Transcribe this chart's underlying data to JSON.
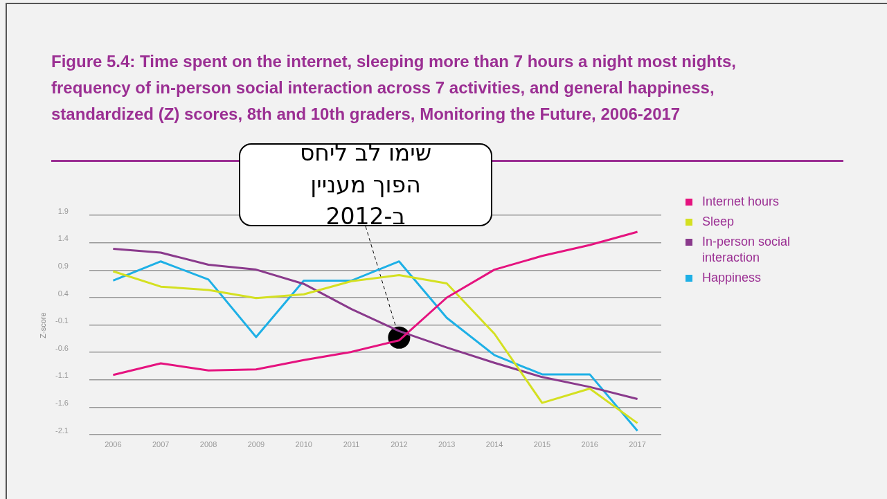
{
  "chart_data": {
    "type": "line",
    "title": "Figure 5.4: Time spent on the internet, sleeping more than 7 hours a night most nights, frequency of in-person social interaction across 7 activities, and general happiness, standardized (Z) scores, 8th and 10th graders, Monitoring the Future, 2006-2017",
    "ylabel": "Z-score",
    "categories": [
      "2006",
      "2007",
      "2008",
      "2009",
      "2010",
      "2011",
      "2012",
      "2013",
      "2014",
      "2015",
      "2016",
      "2017"
    ],
    "series": [
      {
        "name": "Internet hours",
        "color": "#e5137f",
        "values": [
          -1.01,
          -0.8,
          -0.93,
          -0.91,
          -0.74,
          -0.59,
          -0.38,
          0.4,
          0.91,
          1.16,
          1.36,
          1.6
        ]
      },
      {
        "name": "Sleep",
        "color": "#d4e021",
        "values": [
          0.88,
          0.6,
          0.54,
          0.39,
          0.46,
          0.7,
          0.81,
          0.66,
          -0.26,
          -1.52,
          -1.26,
          -1.89
        ]
      },
      {
        "name": "In-person social interaction",
        "color": "#8a3a8c",
        "values": [
          1.29,
          1.22,
          1.0,
          0.91,
          0.65,
          0.19,
          -0.21,
          -0.51,
          -0.79,
          -1.05,
          -1.23,
          -1.45
        ]
      },
      {
        "name": "Happiness",
        "color": "#1eb0e6",
        "values": [
          0.71,
          1.06,
          0.73,
          -0.32,
          0.71,
          0.71,
          1.06,
          0.03,
          -0.65,
          -1.0,
          -1.0,
          -2.03
        ]
      }
    ],
    "ylim": [
      -2.1,
      1.9
    ],
    "yticks": [
      -2.1,
      -1.6,
      -1.1,
      -0.6,
      -0.1,
      0.4,
      0.9,
      1.4,
      1.9
    ],
    "grid": "y",
    "legend": "right",
    "marker": "none",
    "line_style": "solid",
    "annotations": [
      {
        "text": "שימו לב ליחס הפוך מעניין ב-2012",
        "x": "2012",
        "y": -0.33
      }
    ]
  }
}
